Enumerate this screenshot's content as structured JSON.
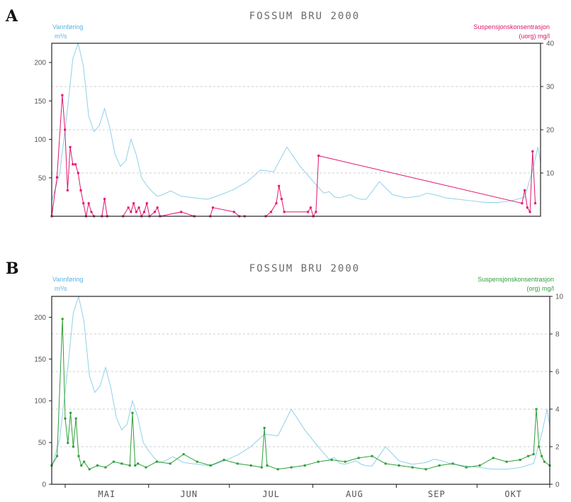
{
  "chart_data": [
    {
      "panel": "A",
      "type": "line",
      "title": "FOSSUM BRU 2000",
      "left_axis": {
        "label_line1": "Vannføring",
        "label_line2": "m³/s",
        "ylim": [
          0,
          225
        ],
        "ticks": [
          50,
          100,
          150,
          200
        ]
      },
      "right_axis": {
        "label_line1": "Suspensjonskonsentrasjon",
        "label_line2": "(uorg) mg/l",
        "ylim": [
          0,
          40
        ],
        "ticks": [
          10,
          20,
          30,
          40
        ]
      },
      "grid_right_values": [
        10,
        20,
        30
      ],
      "x_axis": {
        "xlim": [
          1,
          186
        ],
        "month_labels": [],
        "month_ticks": []
      },
      "colors": {
        "discharge": "#8fd0ea",
        "suspension": "#e0156e"
      },
      "series": [
        {
          "axis": "left",
          "x": [
            1,
            4,
            7,
            9,
            11,
            13,
            15,
            17,
            19,
            21,
            23,
            25,
            27,
            29,
            31,
            33,
            35,
            37,
            39,
            41,
            43,
            46,
            50,
            55,
            60,
            65,
            70,
            75,
            80,
            85,
            90,
            95,
            100,
            104,
            106,
            108,
            110,
            112,
            114,
            116,
            118,
            120,
            125,
            130,
            135,
            140,
            143,
            146,
            150,
            155,
            160,
            165,
            170,
            175,
            180,
            183,
            185,
            186
          ],
          "values": [
            20,
            55,
            140,
            205,
            225,
            195,
            130,
            110,
            118,
            140,
            115,
            80,
            65,
            72,
            100,
            80,
            50,
            40,
            32,
            26,
            28,
            33,
            26,
            24,
            22,
            28,
            35,
            45,
            60,
            58,
            90,
            65,
            45,
            30,
            32,
            25,
            24,
            26,
            28,
            24,
            22,
            22,
            45,
            28,
            24,
            26,
            30,
            28,
            24,
            22,
            20,
            18,
            18,
            20,
            25,
            60,
            90,
            70
          ]
        },
        {
          "axis": "right",
          "x": [
            1,
            3,
            5,
            6,
            7,
            8,
            9,
            10,
            11,
            12,
            13,
            14,
            15,
            16,
            17,
            20,
            21,
            22,
            28,
            30,
            31,
            32,
            33,
            34,
            35,
            36,
            37,
            38,
            40,
            41,
            42,
            50,
            55,
            61,
            62,
            70,
            72,
            74,
            82,
            84,
            86,
            87,
            88,
            89,
            98,
            99,
            100,
            101,
            102,
            179,
            180,
            181,
            182,
            183,
            184
          ],
          "values": [
            0,
            9,
            28,
            20,
            6,
            16,
            12,
            12,
            10,
            6,
            3,
            0,
            3,
            1,
            0,
            0,
            4,
            0,
            0,
            2,
            1,
            3,
            1,
            2,
            0,
            1,
            3,
            0,
            1,
            2,
            0,
            1,
            0,
            0,
            2,
            1,
            0,
            0,
            0,
            1,
            3,
            7,
            4,
            1,
            1,
            2,
            0,
            1,
            14,
            3,
            6,
            2,
            1,
            15,
            3
          ]
        }
      ]
    },
    {
      "panel": "B",
      "type": "line",
      "title": "FOSSUM BRU 2000",
      "left_axis": {
        "label_line1": "Vannføring",
        "label_line2": "m³/s",
        "ylim": [
          0,
          225
        ],
        "ticks": [
          0,
          50,
          100,
          150,
          200
        ]
      },
      "right_axis": {
        "label_line1": "Suspensjonskonsentrasjon",
        "label_line2": "(org) mg/l",
        "ylim": [
          0,
          10
        ],
        "ticks": [
          0,
          2,
          4,
          6,
          8,
          10
        ]
      },
      "grid_right_values": [
        2,
        4,
        6,
        8
      ],
      "x_axis": {
        "xlim": [
          1,
          186
        ],
        "month_labels": [
          "MAI",
          "JUN",
          "JUL",
          "AUG",
          "SEP",
          "OKT"
        ],
        "month_ticks": [
          6,
          37,
          67,
          98,
          129,
          159,
          186
        ]
      },
      "colors": {
        "discharge": "#8fd0ea",
        "suspension": "#2e9e3a"
      },
      "series": [
        {
          "axis": "left",
          "x": [
            1,
            4,
            7,
            9,
            11,
            13,
            15,
            17,
            19,
            21,
            23,
            25,
            27,
            29,
            31,
            33,
            35,
            37,
            39,
            41,
            43,
            46,
            50,
            55,
            60,
            65,
            70,
            75,
            80,
            85,
            90,
            95,
            100,
            104,
            106,
            108,
            110,
            112,
            114,
            116,
            118,
            120,
            125,
            130,
            135,
            140,
            143,
            146,
            150,
            155,
            160,
            165,
            170,
            175,
            180,
            183,
            185,
            186
          ],
          "values": [
            20,
            55,
            140,
            205,
            225,
            195,
            130,
            110,
            118,
            140,
            115,
            80,
            65,
            72,
            100,
            80,
            50,
            40,
            32,
            26,
            28,
            33,
            26,
            24,
            22,
            28,
            35,
            45,
            60,
            58,
            90,
            65,
            45,
            30,
            32,
            25,
            24,
            26,
            28,
            24,
            22,
            22,
            45,
            28,
            24,
            26,
            30,
            28,
            24,
            22,
            20,
            18,
            18,
            20,
            25,
            60,
            90,
            70
          ]
        },
        {
          "axis": "right",
          "x": [
            1,
            3,
            5,
            6,
            7,
            8,
            9,
            10,
            11,
            12,
            13,
            15,
            18,
            21,
            24,
            27,
            30,
            31,
            32,
            33,
            36,
            40,
            45,
            50,
            55,
            60,
            65,
            70,
            75,
            79,
            80,
            81,
            85,
            90,
            95,
            100,
            105,
            110,
            115,
            120,
            125,
            130,
            135,
            140,
            145,
            150,
            155,
            160,
            165,
            170,
            175,
            178,
            180,
            181,
            182,
            183,
            184,
            186
          ],
          "values": [
            1.0,
            1.5,
            8.8,
            3.5,
            2.2,
            3.8,
            2.0,
            3.5,
            1.5,
            1.0,
            1.2,
            0.8,
            1.0,
            0.9,
            1.2,
            1.1,
            1.0,
            3.8,
            1.0,
            1.1,
            0.9,
            1.2,
            1.1,
            1.6,
            1.2,
            1.0,
            1.3,
            1.1,
            1.0,
            0.9,
            3.0,
            1.0,
            0.8,
            0.9,
            1.0,
            1.2,
            1.3,
            1.2,
            1.4,
            1.5,
            1.1,
            1.0,
            0.9,
            0.8,
            1.0,
            1.1,
            0.9,
            1.0,
            1.4,
            1.2,
            1.3,
            1.5,
            1.6,
            4.0,
            2.0,
            1.5,
            1.2,
            1.0
          ]
        }
      ]
    }
  ]
}
